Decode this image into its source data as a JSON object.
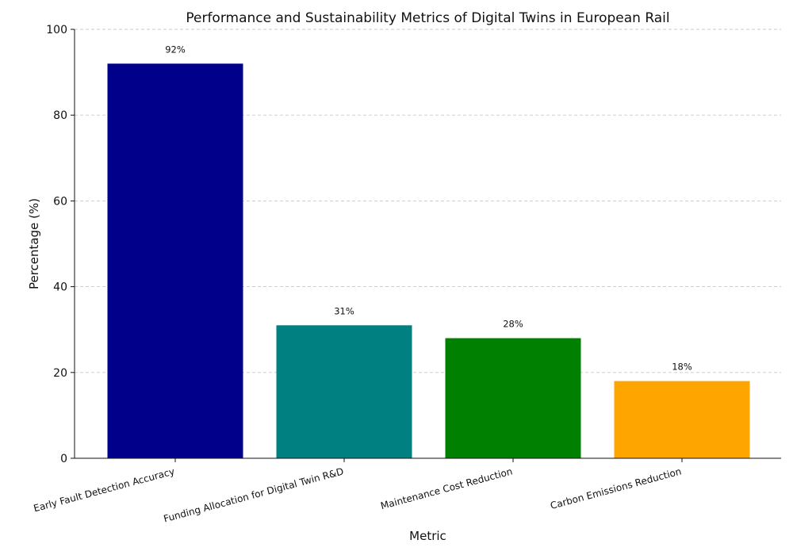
{
  "chart_data": {
    "type": "bar",
    "title": "Performance and Sustainability Metrics of Digital Twins in European Rail",
    "xlabel": "Metric",
    "ylabel": "Percentage (%)",
    "ylim": [
      0,
      100
    ],
    "yticks": [
      0,
      20,
      40,
      60,
      80,
      100
    ],
    "grid": "y-dashed",
    "categories": [
      "Early Fault Detection Accuracy",
      "Funding Allocation for Digital Twin R&D",
      "Maintenance Cost Reduction",
      "Carbon Emissions Reduction"
    ],
    "values": [
      92,
      31,
      28,
      18
    ],
    "data_labels": [
      "92%",
      "31%",
      "28%",
      "18%"
    ],
    "colors": [
      "#00008b",
      "#008080",
      "#008000",
      "#ffa500"
    ]
  }
}
